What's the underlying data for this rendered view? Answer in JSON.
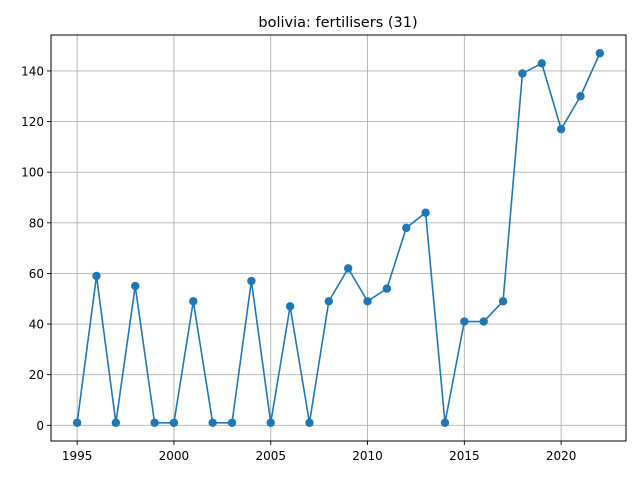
{
  "chart_data": {
    "type": "line",
    "title": "bolivia: fertilisers (31)",
    "xlabel": "",
    "ylabel": "",
    "xlim": [
      1993.65,
      2023.35
    ],
    "ylim": [
      -6.2,
      154.2
    ],
    "xticks": [
      1995,
      2000,
      2005,
      2010,
      2015,
      2020
    ],
    "yticks": [
      0,
      20,
      40,
      60,
      80,
      100,
      120,
      140
    ],
    "grid": true,
    "color": "#1f77b4",
    "marker": "circle",
    "x": [
      1995,
      1996,
      1997,
      1998,
      1999,
      2000,
      2001,
      2002,
      2003,
      2004,
      2005,
      2006,
      2007,
      2008,
      2009,
      2010,
      2011,
      2012,
      2013,
      2014,
      2015,
      2016,
      2017,
      2018,
      2019,
      2020,
      2021,
      2022
    ],
    "y": [
      1,
      59,
      1,
      55,
      1,
      1,
      49,
      1,
      1,
      57,
      1,
      47,
      1,
      49,
      62,
      49,
      54,
      78,
      84,
      1,
      41,
      41,
      49,
      139,
      143,
      117,
      130,
      147
    ]
  }
}
